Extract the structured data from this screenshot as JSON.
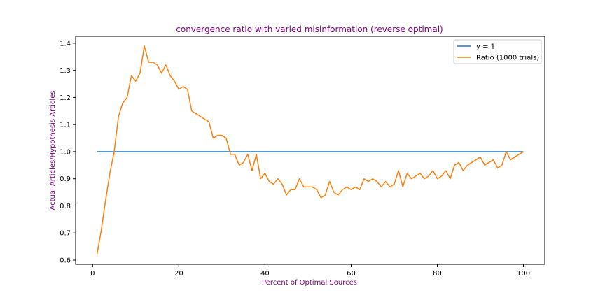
{
  "chart_data": {
    "type": "line",
    "title": "convergence ratio with varied misinformation (reverse optimal)",
    "xlabel": "Percent of Optimal Sources",
    "ylabel": "Actual Articles/Hypothesis Articles",
    "xlim": [
      -3.95,
      104.95
    ],
    "ylim": [
      0.5845,
      1.4255
    ],
    "xticks": [
      0,
      20,
      40,
      60,
      80,
      100
    ],
    "yticks": [
      0.6,
      0.7,
      0.8,
      0.9,
      1.0,
      1.1,
      1.2,
      1.3,
      1.4
    ],
    "grid": false,
    "legend_position": "top-right",
    "text_color": "#800080",
    "series": [
      {
        "name": "y = 1",
        "color": "#1f77b4",
        "x": [
          1,
          100
        ],
        "y": [
          1.0,
          1.0
        ]
      },
      {
        "name": "Ratio (1000 trials)",
        "color": "#ff7f0e",
        "x": [
          1,
          2,
          3,
          4,
          5,
          6,
          7,
          8,
          9,
          10,
          11,
          12,
          13,
          14,
          15,
          16,
          17,
          18,
          19,
          20,
          21,
          22,
          23,
          24,
          25,
          26,
          27,
          28,
          29,
          30,
          31,
          32,
          33,
          34,
          35,
          36,
          37,
          38,
          39,
          40,
          41,
          42,
          43,
          44,
          45,
          46,
          47,
          48,
          49,
          50,
          51,
          52,
          53,
          54,
          55,
          56,
          57,
          58,
          59,
          60,
          61,
          62,
          63,
          64,
          65,
          66,
          67,
          68,
          69,
          70,
          71,
          72,
          73,
          74,
          75,
          76,
          77,
          78,
          79,
          80,
          81,
          82,
          83,
          84,
          85,
          86,
          87,
          88,
          89,
          90,
          91,
          92,
          93,
          94,
          95,
          96,
          97,
          98,
          99,
          100
        ],
        "y": [
          0.62,
          0.71,
          0.82,
          0.92,
          1.0,
          1.13,
          1.18,
          1.2,
          1.28,
          1.26,
          1.29,
          1.39,
          1.33,
          1.33,
          1.32,
          1.29,
          1.32,
          1.28,
          1.26,
          1.23,
          1.24,
          1.23,
          1.15,
          1.14,
          1.13,
          1.12,
          1.11,
          1.05,
          1.06,
          1.06,
          1.05,
          0.99,
          0.99,
          0.95,
          0.96,
          0.99,
          0.93,
          0.99,
          0.9,
          0.92,
          0.89,
          0.88,
          0.9,
          0.88,
          0.84,
          0.86,
          0.86,
          0.9,
          0.87,
          0.87,
          0.87,
          0.86,
          0.83,
          0.84,
          0.89,
          0.85,
          0.84,
          0.86,
          0.87,
          0.86,
          0.87,
          0.86,
          0.9,
          0.89,
          0.9,
          0.89,
          0.87,
          0.89,
          0.87,
          0.88,
          0.93,
          0.87,
          0.92,
          0.9,
          0.91,
          0.92,
          0.9,
          0.91,
          0.93,
          0.9,
          0.91,
          0.93,
          0.9,
          0.95,
          0.96,
          0.93,
          0.95,
          0.96,
          0.97,
          0.98,
          0.95,
          0.96,
          0.97,
          0.94,
          0.95,
          1.0,
          0.97,
          0.98,
          0.99,
          1.0
        ]
      }
    ]
  }
}
